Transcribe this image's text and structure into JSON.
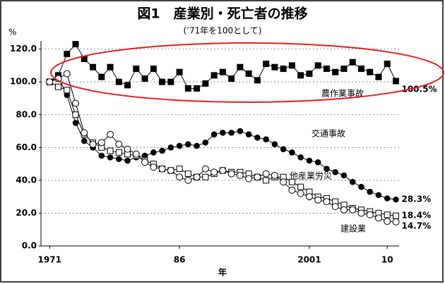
{
  "chart_data": {
    "type": "line",
    "title": "図1　産業別・死亡者の推移",
    "subtitle": "(’71年を100として)",
    "y_unit": "%",
    "xlabel": "年",
    "xlim": [
      1970,
      2013
    ],
    "xticks": [
      1971,
      {
        "value": 1986,
        "label": "86"
      },
      2001,
      {
        "value": 2010,
        "label": "10"
      }
    ],
    "ylim": [
      0,
      125
    ],
    "yticks": [
      {
        "value": 0,
        "label": "0.0"
      },
      {
        "value": 20,
        "label": "20.0"
      },
      {
        "value": 40,
        "label": "40.0"
      },
      {
        "value": 60,
        "label": "60.0"
      },
      {
        "value": 80,
        "label": "80.0"
      },
      {
        "value": 100,
        "label": "100.0"
      },
      {
        "value": 120,
        "label": "120.0"
      }
    ],
    "grid": true,
    "x": [
      1971,
      1972,
      1973,
      1974,
      1975,
      1976,
      1977,
      1978,
      1979,
      1980,
      1981,
      1982,
      1983,
      1984,
      1985,
      1986,
      1987,
      1988,
      1989,
      1990,
      1991,
      1992,
      1993,
      1994,
      1995,
      1996,
      1997,
      1998,
      1999,
      2000,
      2001,
      2002,
      2003,
      2004,
      2005,
      2006,
      2007,
      2008,
      2009,
      2010,
      2011
    ],
    "series": [
      {
        "name": "農作業事故",
        "color": "#000",
        "marker": "square-filled",
        "values": [
          100,
          104,
          117,
          123,
          114,
          109,
          103,
          109,
          100,
          98,
          108,
          102,
          108,
          100,
          100,
          106,
          96,
          96,
          99,
          104,
          106,
          102,
          109,
          105,
          101,
          111,
          109,
          108,
          110,
          104,
          105,
          110,
          108,
          106,
          108,
          112,
          108,
          106,
          103,
          111,
          100.5
        ],
        "value_labels": [
          null,
          null,
          null,
          null,
          null,
          null,
          null,
          null,
          null,
          null,
          null,
          null,
          null,
          null,
          null,
          null,
          null,
          null,
          null,
          null,
          null,
          null,
          null,
          null,
          null,
          null,
          null,
          null,
          null,
          null,
          null,
          null,
          null,
          null,
          null,
          null,
          null,
          null,
          null,
          null,
          "100.5%"
        ]
      },
      {
        "name": "交通事故",
        "color": "#000",
        "marker": "circle-filled",
        "values": [
          100,
          103,
          92,
          75,
          64,
          60,
          55,
          54,
          53,
          52,
          54,
          55,
          57,
          58,
          60,
          61,
          62,
          61,
          63,
          68,
          69,
          69,
          70,
          68,
          66,
          65,
          62,
          59,
          57,
          54,
          52,
          51,
          47,
          45,
          43,
          39,
          36,
          33,
          31,
          29,
          28.3
        ],
        "value_labels": [
          null,
          null,
          null,
          null,
          null,
          null,
          null,
          null,
          null,
          null,
          null,
          null,
          null,
          null,
          null,
          null,
          null,
          null,
          null,
          null,
          null,
          null,
          null,
          null,
          null,
          null,
          null,
          null,
          null,
          null,
          null,
          null,
          null,
          null,
          null,
          null,
          null,
          null,
          null,
          null,
          "28.3%"
        ]
      },
      {
        "name": "他産業労災",
        "color": "#000",
        "marker": "square-open",
        "values": [
          100,
          97,
          95,
          80,
          68,
          63,
          60,
          58,
          57,
          56,
          55,
          52,
          50,
          47,
          46,
          47,
          44,
          42,
          42,
          44,
          46,
          45,
          45,
          44,
          42,
          40,
          42,
          42,
          39,
          36,
          33,
          30,
          29,
          27,
          25,
          23,
          22,
          21,
          20,
          19,
          18.4
        ],
        "value_labels": [
          null,
          null,
          null,
          null,
          null,
          null,
          null,
          null,
          null,
          null,
          null,
          null,
          null,
          null,
          null,
          null,
          null,
          null,
          null,
          null,
          null,
          null,
          null,
          null,
          null,
          null,
          null,
          null,
          null,
          null,
          null,
          null,
          null,
          null,
          null,
          null,
          null,
          null,
          null,
          null,
          "18.4%"
        ]
      },
      {
        "name": "建設業",
        "color": "#000",
        "marker": "circle-open",
        "values": [
          100,
          102,
          105,
          87,
          69,
          62,
          63,
          68,
          62,
          59,
          56,
          51,
          48,
          47,
          46,
          42,
          40,
          42,
          47,
          45,
          46,
          44,
          43,
          41,
          42,
          44,
          43,
          39,
          34,
          32,
          30,
          28,
          27,
          24,
          22,
          22,
          20,
          19,
          17,
          15,
          14.7
        ],
        "value_labels": [
          null,
          null,
          null,
          null,
          null,
          null,
          null,
          null,
          null,
          null,
          null,
          null,
          null,
          null,
          null,
          null,
          null,
          null,
          null,
          null,
          null,
          null,
          null,
          null,
          null,
          null,
          null,
          null,
          null,
          null,
          null,
          null,
          null,
          null,
          null,
          null,
          null,
          null,
          null,
          null,
          "14.7%"
        ]
      }
    ]
  }
}
